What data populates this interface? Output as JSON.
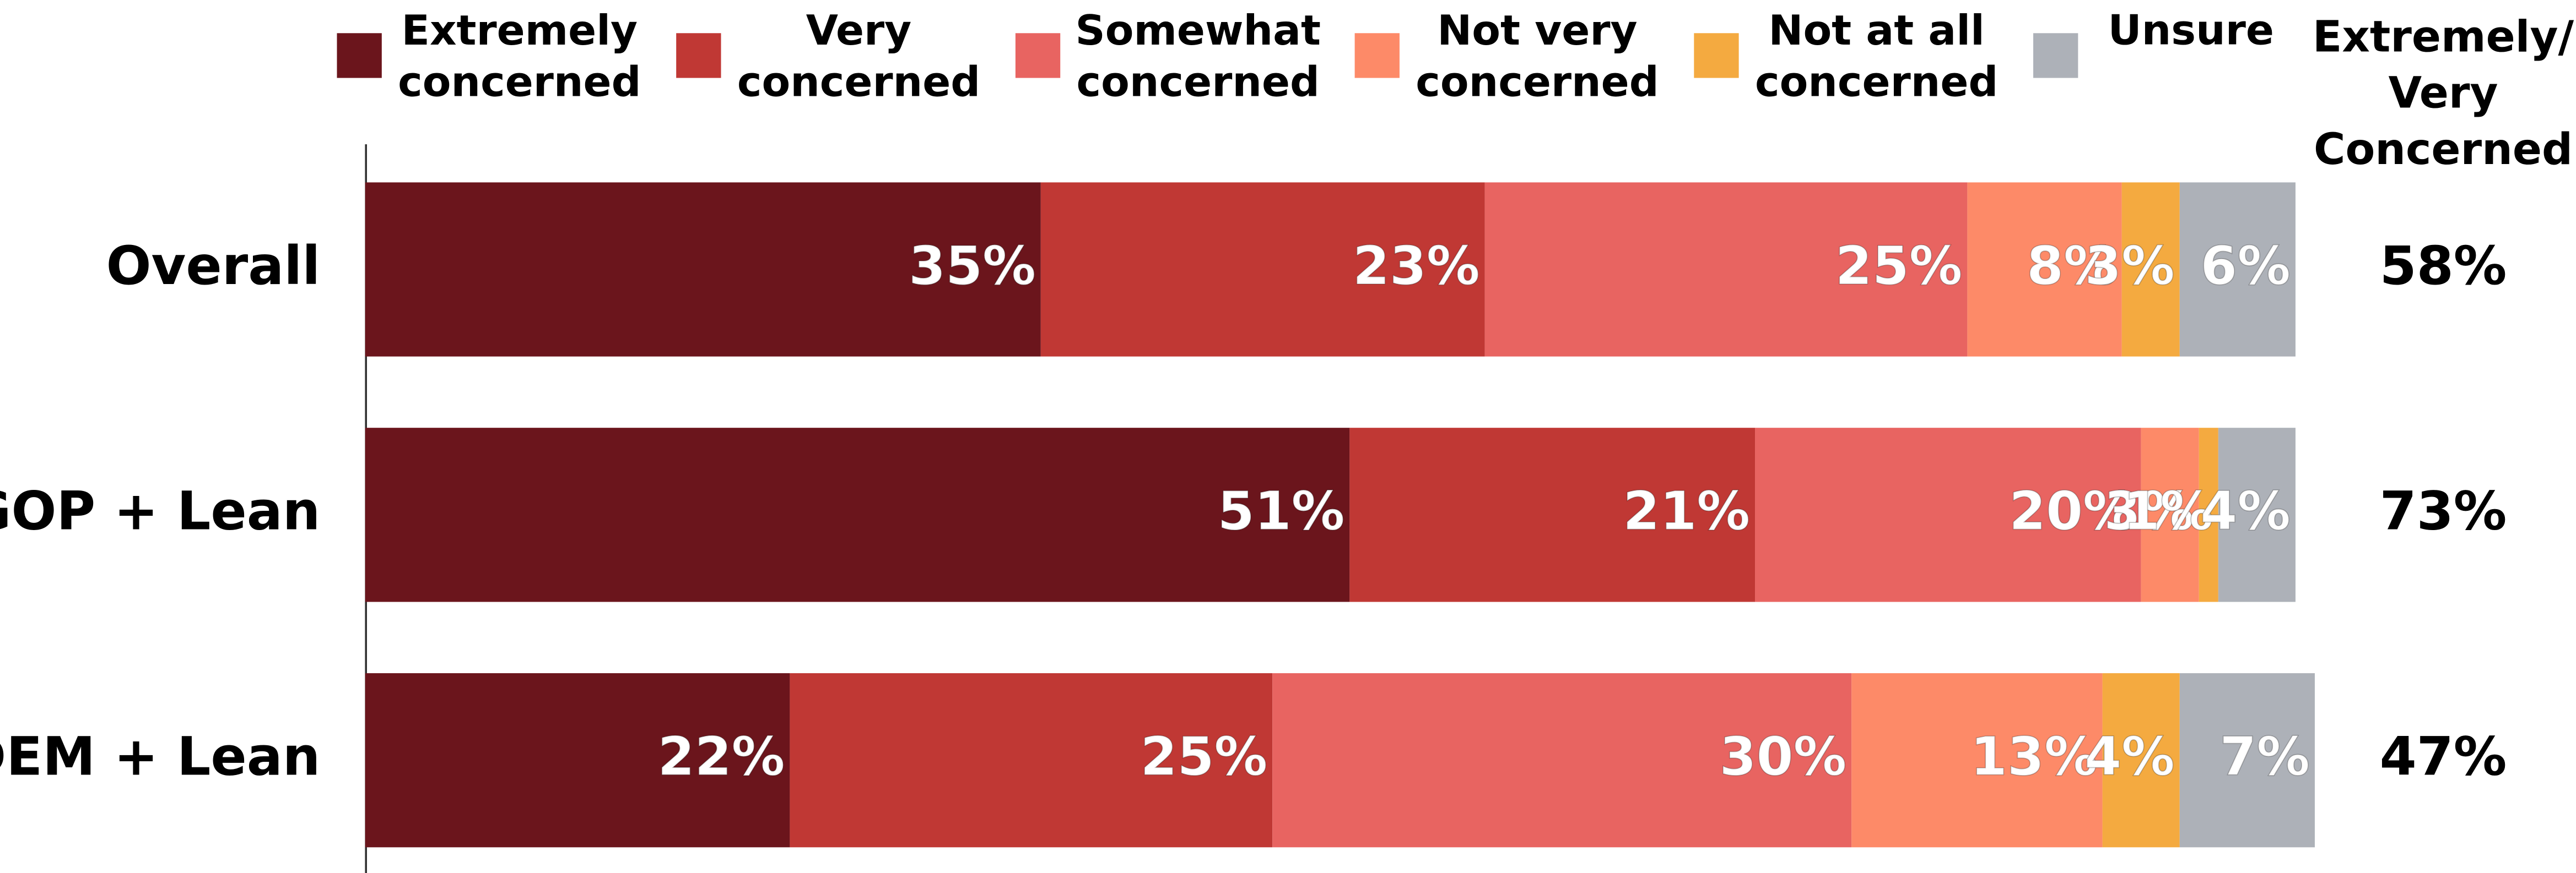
{
  "chart_data": {
    "type": "stacked-barh",
    "categories": [
      "Overall",
      "GOP + Lean",
      "DEM + Lean"
    ],
    "xlim": [
      0,
      100
    ],
    "series": [
      {
        "name": "Extremely concerned",
        "color": "#6b151c",
        "values": [
          35,
          51,
          22
        ],
        "value_labels": [
          "35%",
          "51%",
          "22%"
        ]
      },
      {
        "name": "Very concerned",
        "color": "#c03834",
        "values": [
          23,
          21,
          25
        ],
        "value_labels": [
          "23%",
          "21%",
          "25%"
        ]
      },
      {
        "name": "Somewhat concerned",
        "color": "#e86461",
        "values": [
          25,
          20,
          30
        ],
        "value_labels": [
          "25%",
          "20%",
          "30%"
        ]
      },
      {
        "name": "Not very concerned",
        "color": "#fd8a68",
        "values": [
          8,
          3,
          13
        ],
        "value_labels": [
          "8%",
          "3%",
          "13%"
        ]
      },
      {
        "name": "Not at all concerned",
        "color": "#f4aa40",
        "values": [
          3,
          1,
          4
        ],
        "value_labels": [
          "3%",
          "1%",
          "4%"
        ]
      },
      {
        "name": "Unsure",
        "color": "#adb1b8",
        "values": [
          6,
          4,
          7
        ],
        "value_labels": [
          "6%",
          "4%",
          "7%"
        ]
      }
    ],
    "totals": {
      "title": "Extremely/ Very Concerned",
      "values": [
        58,
        73,
        47
      ],
      "value_labels": [
        "58%",
        "73%",
        "47%"
      ]
    }
  }
}
